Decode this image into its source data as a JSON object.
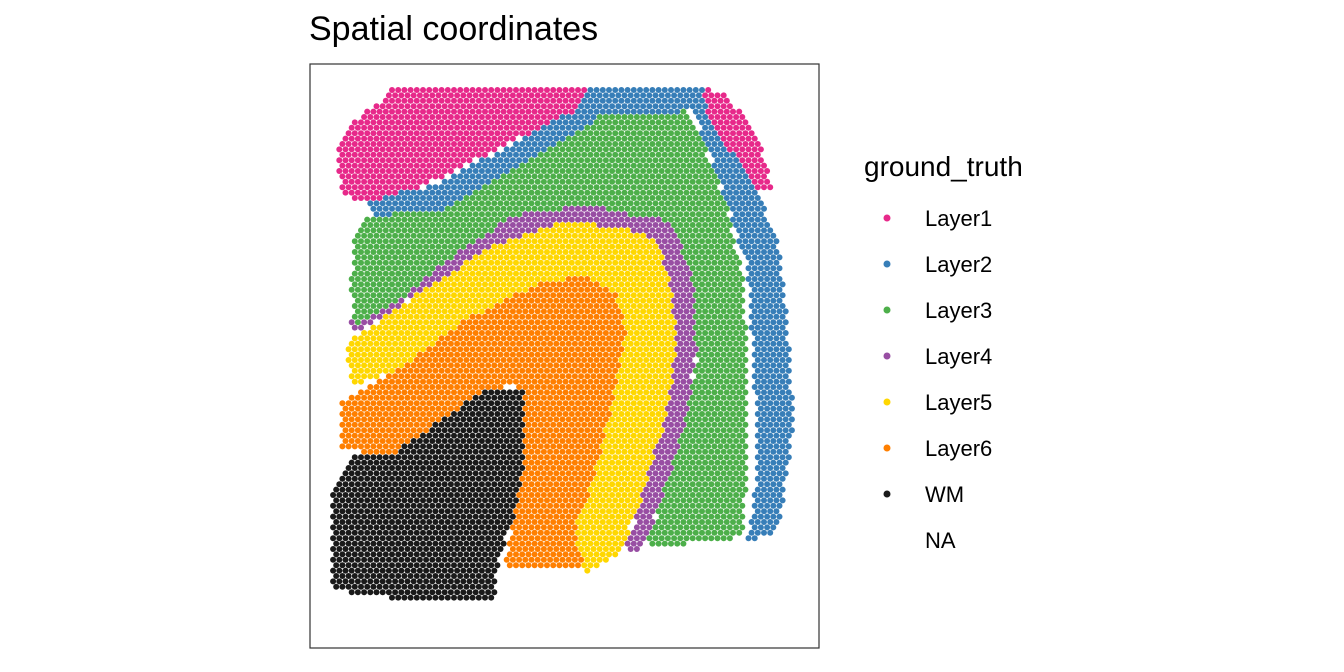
{
  "chart_data": {
    "type": "scatter",
    "title": "Spatial coordinates",
    "xlabel": "",
    "ylabel": "",
    "grid": false,
    "legend_position": "right",
    "legend": {
      "title": "ground_truth",
      "entries": [
        {
          "label": "Layer1",
          "color": "#E7298A"
        },
        {
          "label": "Layer2",
          "color": "#377EB8"
        },
        {
          "label": "Layer3",
          "color": "#4DAF4A"
        },
        {
          "label": "Layer4",
          "color": "#984EA3"
        },
        {
          "label": "Layer5",
          "color": "#FFD700"
        },
        {
          "label": "Layer6",
          "color": "#FF7F00"
        },
        {
          "label": "WM",
          "color": "#1A1A1A"
        },
        {
          "label": "NA",
          "color": "#FFFFFF"
        }
      ]
    },
    "note_on_regions": "Spots laid on a hexagonal grid; each layer is a contiguous band. Regions below are polygons in normalized panel space (0-1, origin top-left of the plotting panel) describing where each layer's spots occur.",
    "regions": [
      {
        "label": "Layer1",
        "polygon": [
          [
            0.16,
            0.04
          ],
          [
            0.55,
            0.04
          ],
          [
            0.52,
            0.08
          ],
          [
            0.38,
            0.14
          ],
          [
            0.22,
            0.21
          ],
          [
            0.1,
            0.24
          ],
          [
            0.06,
            0.22
          ],
          [
            0.05,
            0.14
          ],
          [
            0.08,
            0.1
          ],
          [
            0.13,
            0.07
          ]
        ]
      },
      {
        "label": "Layer1",
        "polygon": [
          [
            0.77,
            0.04
          ],
          [
            0.82,
            0.05
          ],
          [
            0.88,
            0.13
          ],
          [
            0.91,
            0.21
          ],
          [
            0.88,
            0.22
          ],
          [
            0.82,
            0.14
          ],
          [
            0.78,
            0.08
          ]
        ]
      },
      {
        "label": "Layer2",
        "polygon": [
          [
            0.54,
            0.04
          ],
          [
            0.77,
            0.04
          ],
          [
            0.82,
            0.14
          ],
          [
            0.88,
            0.22
          ],
          [
            0.92,
            0.31
          ],
          [
            0.94,
            0.46
          ],
          [
            0.95,
            0.62
          ],
          [
            0.92,
            0.8
          ],
          [
            0.86,
            0.82
          ],
          [
            0.88,
            0.68
          ],
          [
            0.87,
            0.5
          ],
          [
            0.86,
            0.35
          ],
          [
            0.82,
            0.24
          ],
          [
            0.78,
            0.14
          ],
          [
            0.75,
            0.08
          ],
          [
            0.57,
            0.09
          ],
          [
            0.42,
            0.17
          ],
          [
            0.26,
            0.25
          ],
          [
            0.12,
            0.26
          ],
          [
            0.11,
            0.23
          ],
          [
            0.24,
            0.21
          ],
          [
            0.39,
            0.14
          ],
          [
            0.51,
            0.08
          ]
        ]
      },
      {
        "label": "Layer3",
        "polygon": [
          [
            0.56,
            0.08
          ],
          [
            0.74,
            0.08
          ],
          [
            0.78,
            0.15
          ],
          [
            0.82,
            0.25
          ],
          [
            0.85,
            0.36
          ],
          [
            0.86,
            0.5
          ],
          [
            0.86,
            0.66
          ],
          [
            0.85,
            0.81
          ],
          [
            0.66,
            0.83
          ],
          [
            0.7,
            0.72
          ],
          [
            0.74,
            0.6
          ],
          [
            0.76,
            0.5
          ],
          [
            0.75,
            0.36
          ],
          [
            0.71,
            0.27
          ],
          [
            0.64,
            0.26
          ],
          [
            0.55,
            0.24
          ],
          [
            0.4,
            0.26
          ],
          [
            0.28,
            0.33
          ],
          [
            0.18,
            0.4
          ],
          [
            0.09,
            0.45
          ],
          [
            0.08,
            0.38
          ],
          [
            0.09,
            0.28
          ],
          [
            0.12,
            0.26
          ],
          [
            0.26,
            0.24
          ],
          [
            0.42,
            0.16
          ]
        ]
      },
      {
        "label": "Layer4",
        "polygon": [
          [
            0.4,
            0.24
          ],
          [
            0.55,
            0.23
          ],
          [
            0.66,
            0.25
          ],
          [
            0.72,
            0.27
          ],
          [
            0.75,
            0.36
          ],
          [
            0.76,
            0.48
          ],
          [
            0.74,
            0.6
          ],
          [
            0.7,
            0.72
          ],
          [
            0.65,
            0.84
          ],
          [
            0.62,
            0.83
          ],
          [
            0.66,
            0.72
          ],
          [
            0.7,
            0.6
          ],
          [
            0.72,
            0.48
          ],
          [
            0.71,
            0.38
          ],
          [
            0.68,
            0.3
          ],
          [
            0.62,
            0.28
          ],
          [
            0.5,
            0.27
          ],
          [
            0.36,
            0.31
          ],
          [
            0.2,
            0.4
          ],
          [
            0.09,
            0.46
          ],
          [
            0.08,
            0.44
          ],
          [
            0.18,
            0.38
          ],
          [
            0.28,
            0.31
          ]
        ]
      },
      {
        "label": "Layer5",
        "polygon": [
          [
            0.38,
            0.3
          ],
          [
            0.5,
            0.27
          ],
          [
            0.62,
            0.28
          ],
          [
            0.68,
            0.3
          ],
          [
            0.71,
            0.38
          ],
          [
            0.72,
            0.48
          ],
          [
            0.7,
            0.6
          ],
          [
            0.66,
            0.72
          ],
          [
            0.61,
            0.84
          ],
          [
            0.54,
            0.87
          ],
          [
            0.52,
            0.8
          ],
          [
            0.56,
            0.7
          ],
          [
            0.6,
            0.56
          ],
          [
            0.62,
            0.46
          ],
          [
            0.6,
            0.39
          ],
          [
            0.54,
            0.36
          ],
          [
            0.44,
            0.38
          ],
          [
            0.3,
            0.44
          ],
          [
            0.18,
            0.52
          ],
          [
            0.08,
            0.55
          ],
          [
            0.07,
            0.48
          ],
          [
            0.2,
            0.4
          ]
        ]
      },
      {
        "label": "Layer6",
        "polygon": [
          [
            0.44,
            0.37
          ],
          [
            0.54,
            0.36
          ],
          [
            0.6,
            0.39
          ],
          [
            0.62,
            0.46
          ],
          [
            0.6,
            0.56
          ],
          [
            0.56,
            0.7
          ],
          [
            0.53,
            0.8
          ],
          [
            0.54,
            0.86
          ],
          [
            0.38,
            0.86
          ],
          [
            0.4,
            0.78
          ],
          [
            0.42,
            0.68
          ],
          [
            0.42,
            0.56
          ],
          [
            0.4,
            0.55
          ],
          [
            0.34,
            0.56
          ],
          [
            0.24,
            0.62
          ],
          [
            0.16,
            0.67
          ],
          [
            0.06,
            0.66
          ],
          [
            0.06,
            0.58
          ],
          [
            0.18,
            0.52
          ],
          [
            0.3,
            0.44
          ]
        ]
      },
      {
        "label": "WM",
        "polygon": [
          [
            0.32,
            0.55
          ],
          [
            0.42,
            0.56
          ],
          [
            0.42,
            0.68
          ],
          [
            0.4,
            0.78
          ],
          [
            0.37,
            0.85
          ],
          [
            0.36,
            0.92
          ],
          [
            0.2,
            0.92
          ],
          [
            0.04,
            0.9
          ],
          [
            0.04,
            0.74
          ],
          [
            0.08,
            0.67
          ],
          [
            0.2,
            0.64
          ],
          [
            0.26,
            0.6
          ]
        ]
      }
    ]
  }
}
